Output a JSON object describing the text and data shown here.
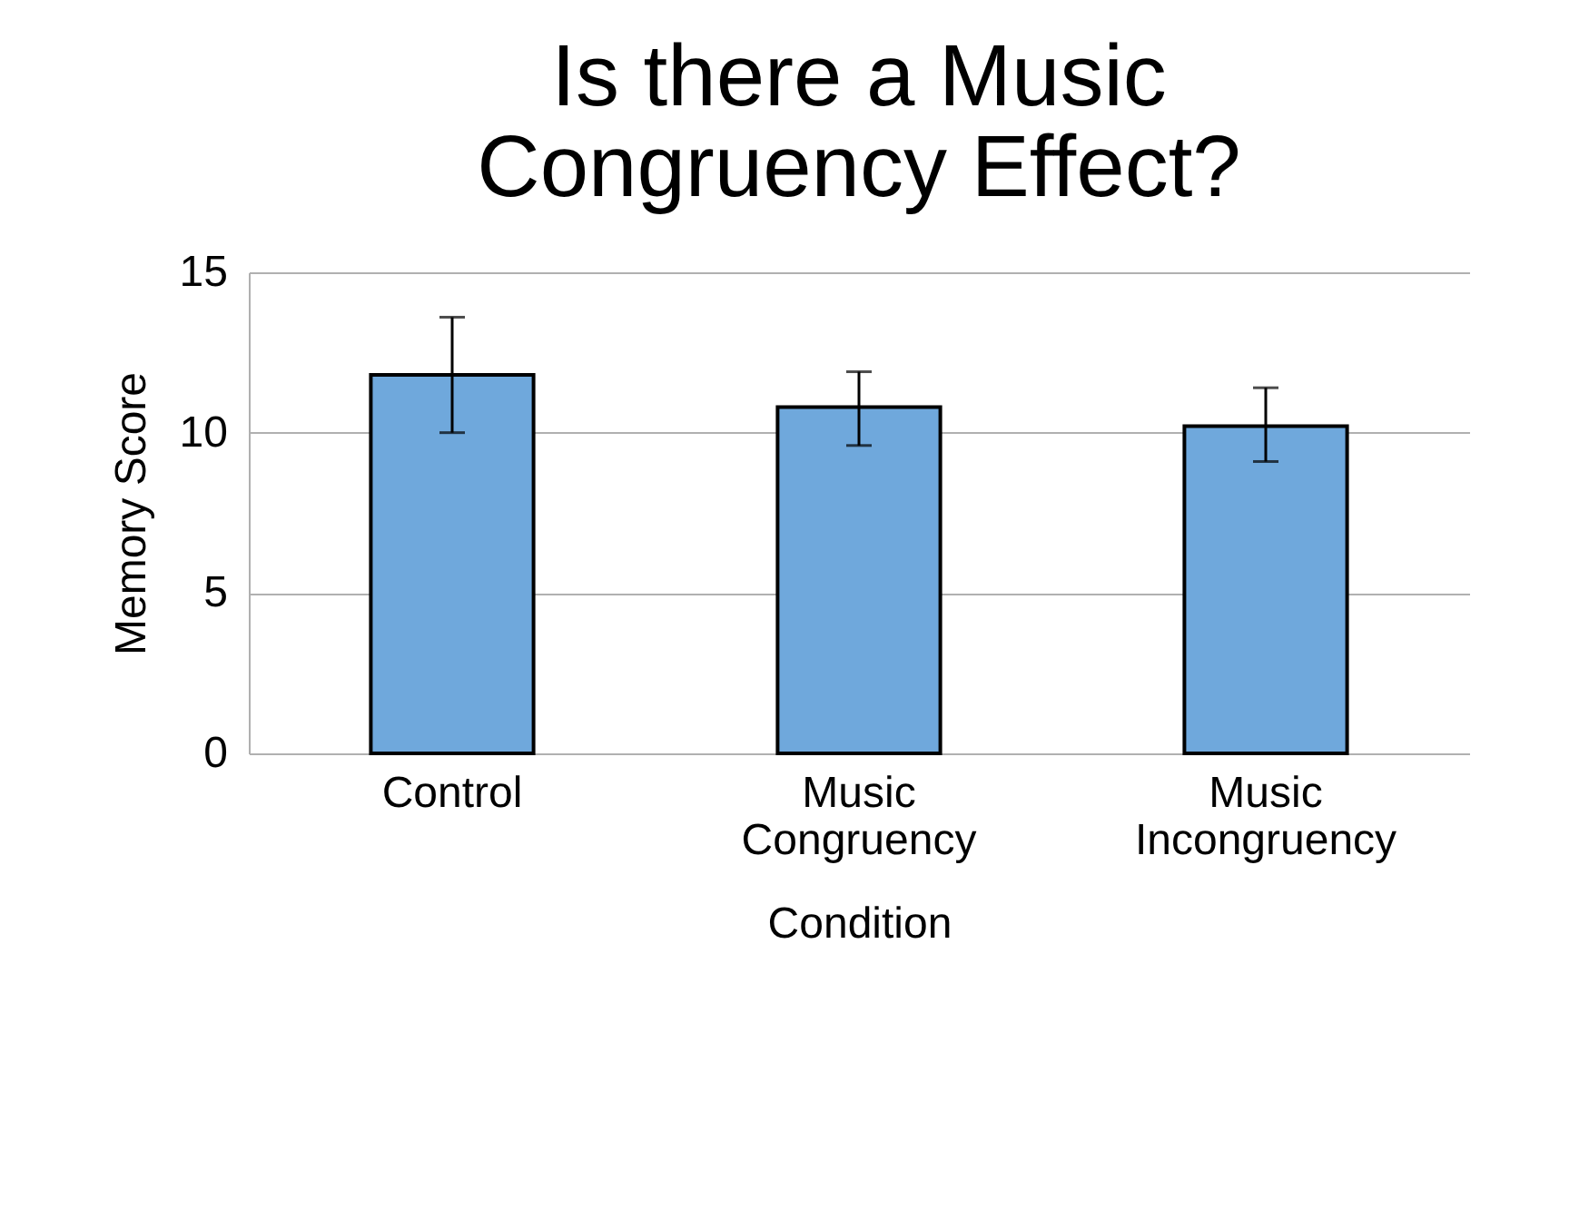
{
  "chart_data": {
    "type": "bar",
    "title": "Is there a Music Congruency Effect?",
    "xlabel": "Condition",
    "ylabel": "Memory Score",
    "categories": [
      "Control",
      "Music Congruency",
      "Music Incongruency"
    ],
    "values": [
      11.8,
      10.8,
      10.2
    ],
    "errors": [
      [
        10.0,
        13.6
      ],
      [
        9.6,
        11.9
      ],
      [
        9.1,
        11.4
      ]
    ],
    "color": "#6fa8dc",
    "ylim": [
      0,
      15
    ],
    "yticks": [
      0,
      5,
      10,
      15
    ],
    "grid": "y"
  }
}
